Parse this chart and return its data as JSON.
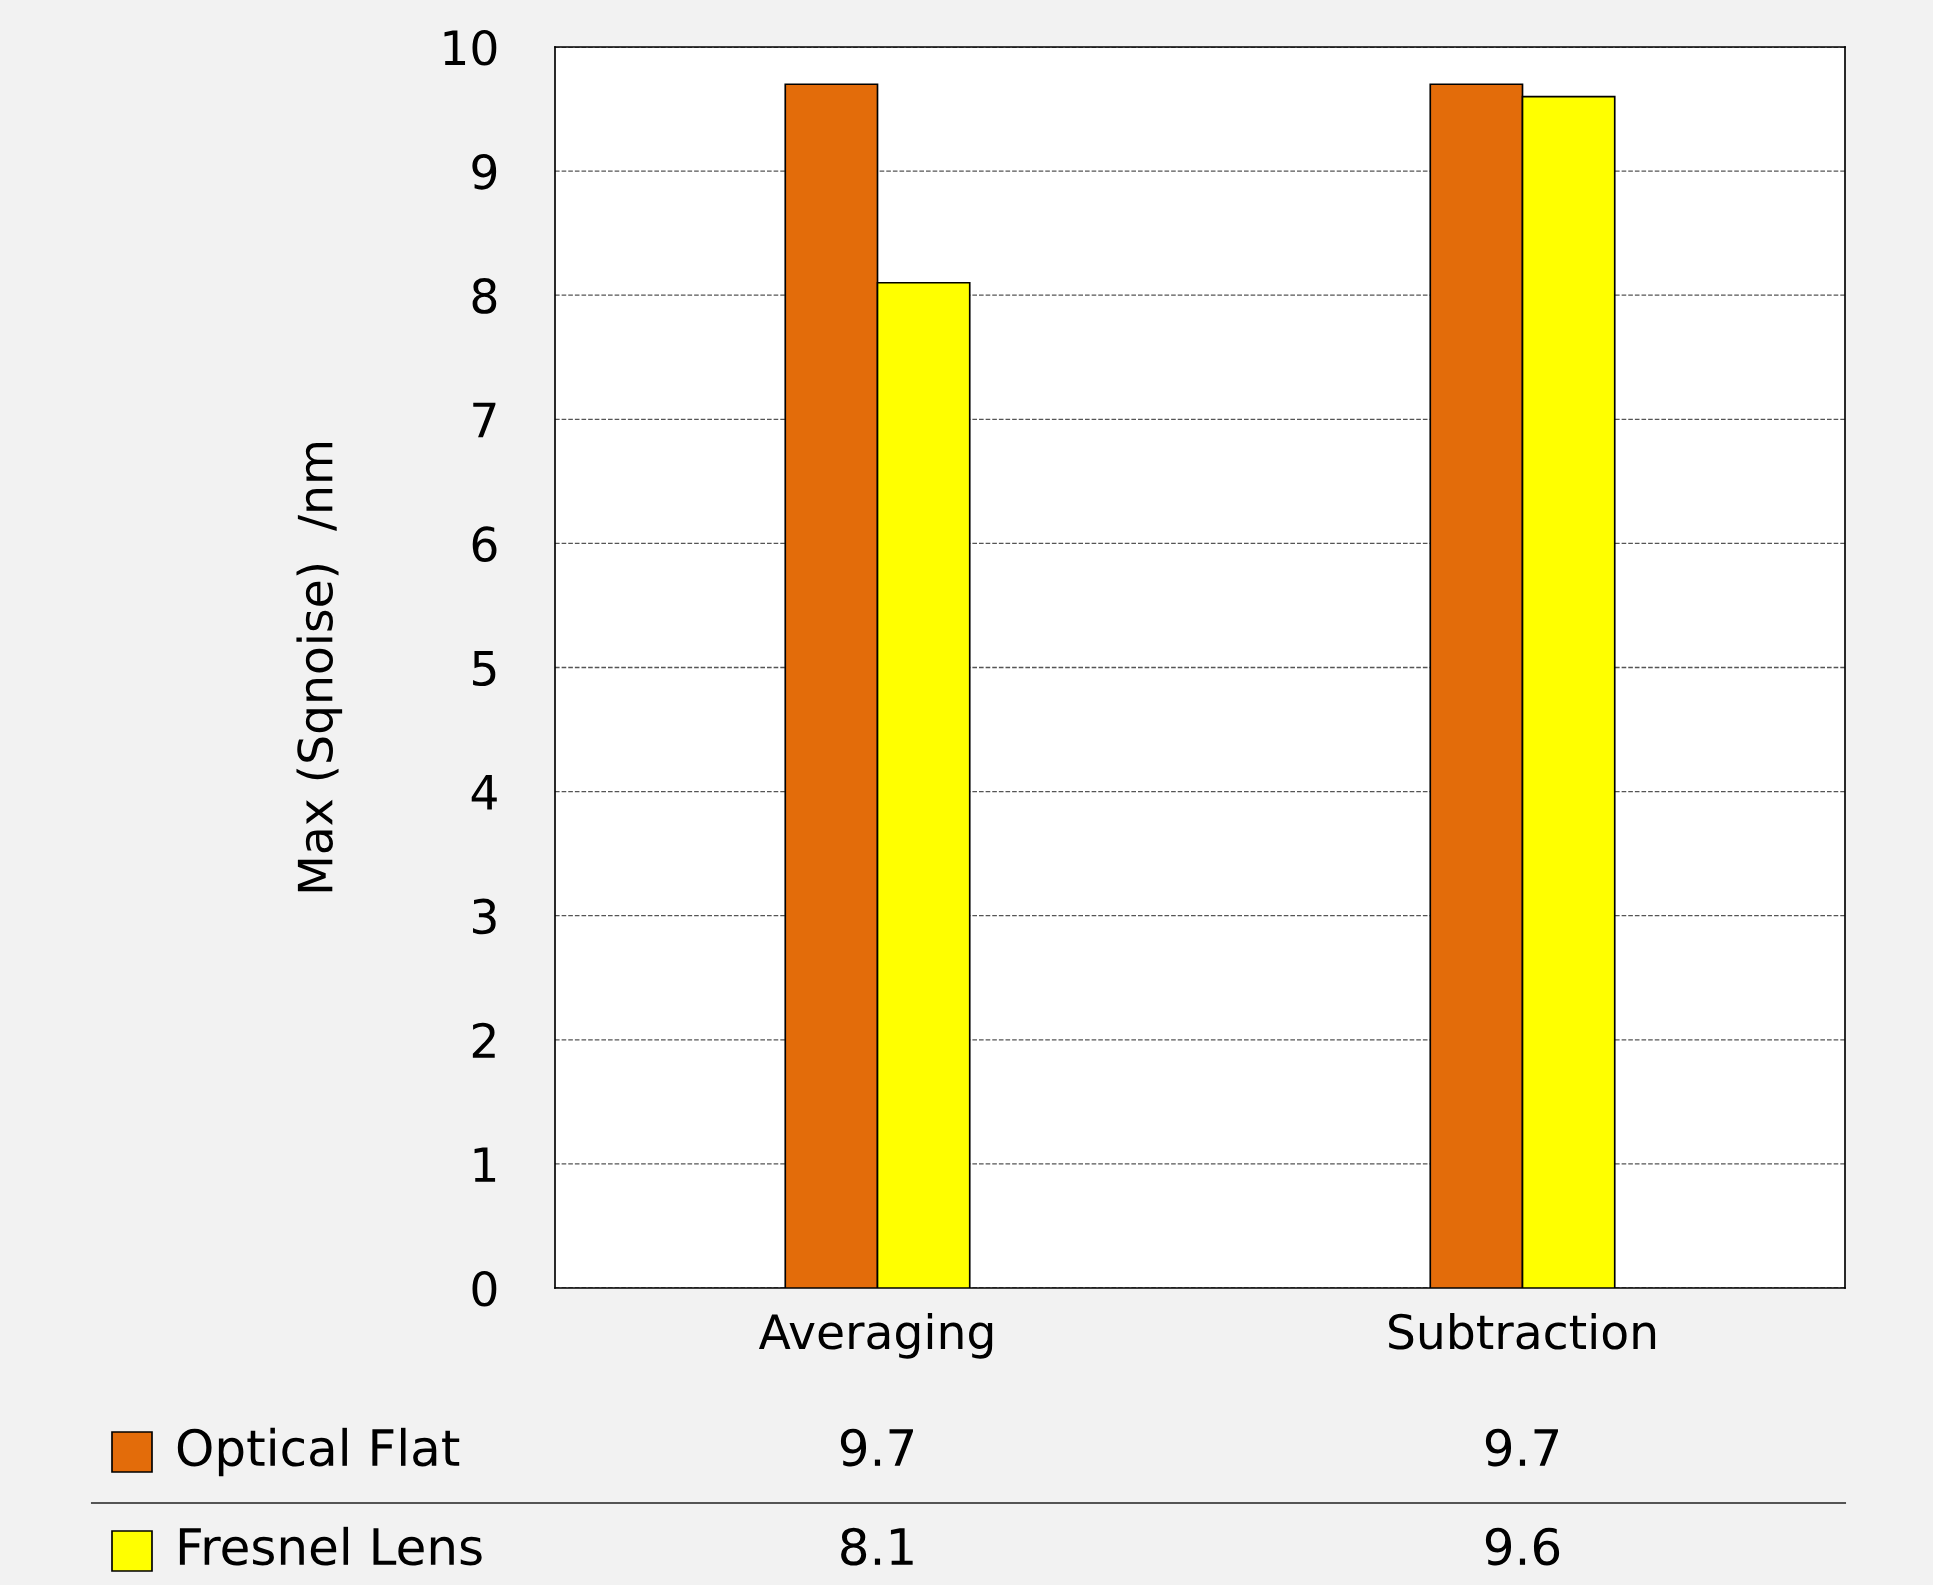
{
  "chart_data": {
    "type": "bar",
    "ylabel": "Max (Sqnoise)  /nm",
    "categories": [
      "Averaging",
      "Subtraction"
    ],
    "series": [
      {
        "name": "Optical Flat",
        "color": "#e36c0a",
        "values": [
          9.7,
          9.7
        ]
      },
      {
        "name": "Fresnel Lens",
        "color": "#ffff00",
        "values": [
          8.1,
          9.6
        ]
      }
    ],
    "ylim": [
      0,
      10
    ],
    "yticks": [
      0,
      1,
      2,
      3,
      4,
      5,
      6,
      7,
      8,
      9,
      10
    ],
    "grid": "y",
    "legend": "bottom",
    "data_labels": true
  }
}
